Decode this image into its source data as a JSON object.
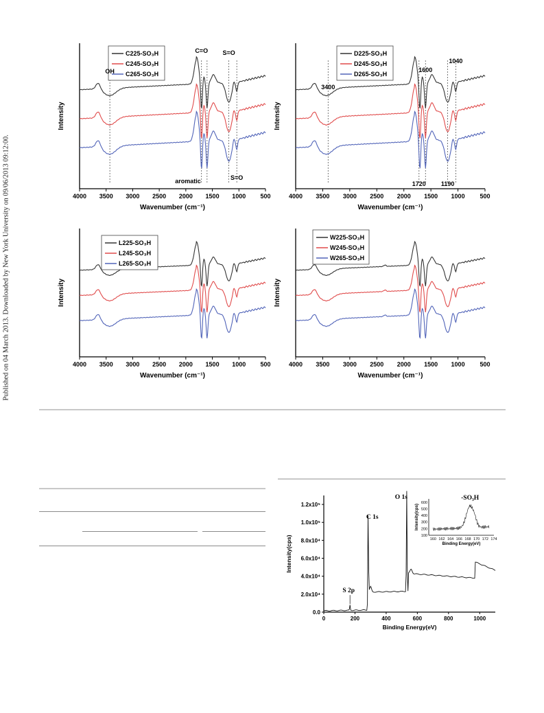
{
  "sidebar": {
    "text": "Published on 04 March 2013. Downloaded by New York University on 09/06/2013 09:12:00."
  },
  "chart_data": [
    {
      "id": "ftir-c",
      "type": "line",
      "xlabel": "Wavenumber (cm⁻¹)",
      "ylabel": "Intensity",
      "xlim": [
        4000,
        500
      ],
      "x_ticks": [
        "4000",
        "3500",
        "3000",
        "2500",
        "2000",
        "1500",
        "1000",
        "500"
      ],
      "legend": [
        "C225-SO₃H",
        "C245-SO₃H",
        "C265-SO₃H"
      ],
      "legend_position": "top-left",
      "colors": [
        "#333333",
        "#e04a4a",
        "#5063b8"
      ],
      "series_offsets": [
        2.2,
        1.1,
        0.0
      ],
      "annotations": [
        {
          "text": "OH",
          "x": 3430
        },
        {
          "text": "C=O",
          "x": 1705
        },
        {
          "text": "S=O",
          "x": 1190
        },
        {
          "text": "aromatic",
          "x": 1600
        },
        {
          "text": "S=O",
          "x": 1040
        }
      ],
      "vlines": [
        3430,
        1705,
        1600,
        1190,
        1040
      ]
    },
    {
      "id": "ftir-d",
      "type": "line",
      "xlabel": "Wavenumber (cm⁻¹)",
      "ylabel": "Intensity",
      "xlim": [
        4000,
        500
      ],
      "x_ticks": [
        "4000",
        "3500",
        "3000",
        "2500",
        "2000",
        "1500",
        "1000",
        "500"
      ],
      "legend": [
        "D225-SO₃H",
        "D245-SO₃H",
        "D265-SO₃H"
      ],
      "legend_position": "top-center",
      "colors": [
        "#333333",
        "#e04a4a",
        "#5063b8"
      ],
      "series_offsets": [
        2.2,
        1.1,
        0.0
      ],
      "annotations": [
        {
          "text": "3400",
          "x": 3400
        },
        {
          "text": "1600",
          "x": 1600
        },
        {
          "text": "1040",
          "x": 1040
        },
        {
          "text": "1720",
          "x": 1720
        },
        {
          "text": "1190",
          "x": 1190
        }
      ],
      "vlines": [
        3400,
        1720,
        1600,
        1190,
        1040
      ]
    },
    {
      "id": "ftir-l",
      "type": "line",
      "xlabel": "Wavenumber (cm⁻¹)",
      "ylabel": "Intensity",
      "xlim": [
        4000,
        500
      ],
      "x_ticks": [
        "4000",
        "3500",
        "3000",
        "2500",
        "2000",
        "1500",
        "1000",
        "500"
      ],
      "legend": [
        "L225-SO₃H",
        "L245-SO₃H",
        "L265-SO₃H"
      ],
      "legend_position": "top-left",
      "colors": [
        "#333333",
        "#e04a4a",
        "#5063b8"
      ],
      "series_offsets": [
        2.2,
        1.1,
        0.0
      ],
      "annotations": [],
      "vlines": []
    },
    {
      "id": "ftir-w",
      "type": "line",
      "xlabel": "Wavenumber (cm⁻¹)",
      "ylabel": "Intensity",
      "xlim": [
        4000,
        500
      ],
      "x_ticks": [
        "4000",
        "3500",
        "3000",
        "2500",
        "2000",
        "1500",
        "1000",
        "500"
      ],
      "legend": [
        "W225-SO₃H",
        "W245-SO₃H",
        "W265-SO₃H"
      ],
      "legend_position": "top-left",
      "colors": [
        "#333333",
        "#e04a4a",
        "#5063b8"
      ],
      "series_offsets": [
        2.2,
        1.1,
        0.0
      ],
      "annotations": [],
      "vlines": []
    },
    {
      "id": "xps",
      "type": "line",
      "xlabel": "Binding Energy(eV)",
      "ylabel": "Intensity(cps)",
      "xlim": [
        0,
        1100
      ],
      "ylim": [
        0,
        130000
      ],
      "x_ticks": [
        "0",
        "200",
        "400",
        "600",
        "800",
        "1000"
      ],
      "y_ticks": [
        "0.0",
        "2.0x10⁴",
        "4.0x10⁴",
        "6.0x10⁴",
        "8.0x10⁴",
        "1.0x10⁵",
        "1.2x10⁵"
      ],
      "y_tick_values": [
        0,
        20000,
        40000,
        60000,
        80000,
        100000,
        120000
      ],
      "annotations": [
        {
          "text": "C 1s",
          "x": 285
        },
        {
          "text": "O 1s",
          "x": 532
        },
        {
          "text": "S 2p",
          "x": 168
        }
      ],
      "inset": {
        "title": "-SO₃H",
        "xlabel": "Binding Energy(eV)",
        "ylabel": "Intensity(cps)",
        "xlim": [
          159,
          174
        ],
        "ylim": [
          100,
          650
        ],
        "x_ticks": [
          "160",
          "162",
          "164",
          "166",
          "168",
          "170",
          "172",
          "174"
        ],
        "y_ticks": [
          "100",
          "200",
          "300",
          "400",
          "500",
          "600"
        ],
        "y_tick_values": [
          100,
          200,
          300,
          400,
          500,
          600
        ]
      }
    }
  ]
}
